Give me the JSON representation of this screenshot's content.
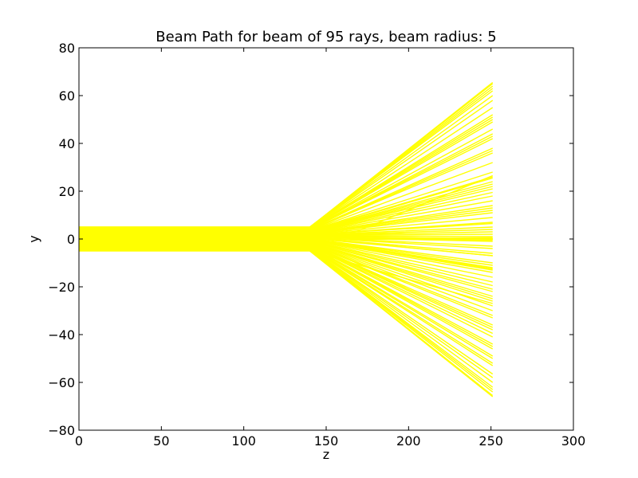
{
  "chart_data": {
    "type": "line",
    "title": "Beam Path for beam of 95 rays, beam radius: 5",
    "xlabel": "z",
    "ylabel": "y",
    "xlim": [
      0,
      300
    ],
    "ylim": [
      -80,
      80
    ],
    "xticks": [
      0,
      50,
      100,
      150,
      200,
      250,
      300
    ],
    "yticks": [
      -80,
      -60,
      -40,
      -20,
      0,
      20,
      40,
      60,
      80
    ],
    "xtick_labels": [
      "0",
      "50",
      "100",
      "150",
      "200",
      "250",
      "300"
    ],
    "ytick_labels": [
      "−80",
      "−60",
      "−40",
      "−20",
      "0",
      "20",
      "40",
      "60",
      "80"
    ],
    "grid": false,
    "legend": "none",
    "line_color": "#ffff00",
    "series_meta": {
      "ray_count": 95,
      "beam_radius": 5,
      "start_z": 0,
      "focus_z": 140,
      "end_z": 251,
      "note": "each ray travels parallel from z=0 to z=140 at its start height, then diverges linearly to its end height at z=251"
    },
    "start_y": [
      -5,
      -4.9,
      -4.8,
      -4.6,
      -4.5,
      -4.3,
      -4.2,
      -4.0,
      -3.9,
      -3.7,
      -3.6,
      -3.4,
      -3.3,
      -3.1,
      -3.0,
      -2.8,
      -2.7,
      -2.5,
      -2.4,
      -2.2,
      -2.1,
      -1.9,
      -1.8,
      -1.6,
      -1.5,
      -1.3,
      -1.2,
      -1.0,
      -0.9,
      -0.7,
      -0.6,
      -0.4,
      -0.3,
      -0.2,
      -0.1,
      0,
      0.1,
      0.2,
      0.3,
      0.4,
      0.5,
      0.6,
      0.7,
      0.8,
      0.9,
      1.0,
      1.1,
      1.2,
      1.3,
      1.4,
      1.5,
      1.6,
      1.7,
      1.8,
      1.9,
      2.0,
      2.1,
      2.2,
      2.3,
      2.4,
      2.5,
      2.6,
      2.7,
      2.8,
      2.9,
      3.0,
      3.1,
      3.2,
      3.3,
      3.4,
      3.5,
      3.6,
      3.7,
      3.8,
      3.9,
      4.0,
      4.1,
      4.2,
      4.3,
      4.4,
      4.5,
      4.6,
      4.7,
      4.8,
      4.9,
      5.0,
      5.0,
      4.95,
      4.9,
      4.85,
      -4.95,
      -4.85,
      -0.05,
      0.05,
      0
    ],
    "end_y": [
      -66,
      -65.5,
      -64,
      -63,
      -62,
      -60,
      -58,
      -56.5,
      -53,
      -52,
      -50,
      -49,
      -46,
      -45,
      -44,
      -41,
      -39.5,
      -38,
      -37,
      -36,
      -33,
      -32,
      -30,
      -28,
      -26,
      -25,
      -24,
      -22,
      -21,
      -19.5,
      -18,
      -16,
      -14,
      -13,
      -12.5,
      -12,
      -11,
      -10,
      -7,
      -7,
      -6,
      -4,
      -3,
      -1,
      0,
      0,
      0,
      0,
      1,
      2,
      3,
      4,
      5,
      6.5,
      7,
      9,
      11,
      12,
      13,
      14,
      16,
      18,
      19.5,
      21,
      22,
      23,
      24,
      25.5,
      26,
      28,
      32,
      36,
      37,
      38,
      42,
      43,
      44,
      46,
      49,
      50,
      51,
      52,
      55,
      58,
      60,
      62,
      63,
      64,
      65,
      65.5,
      -27,
      26.5,
      0.5,
      -0.5,
      0
    ]
  }
}
